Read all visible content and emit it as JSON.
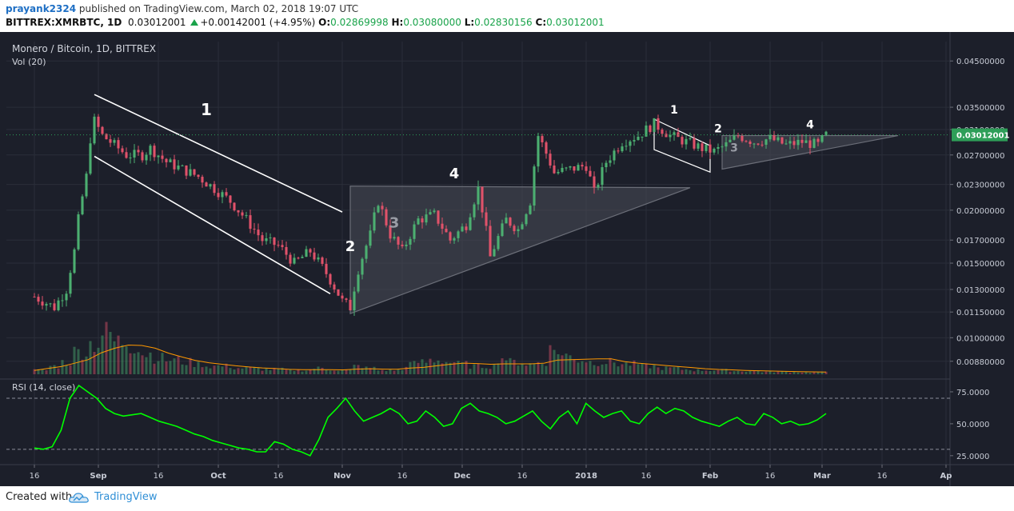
{
  "header": {
    "user": "prayank2324",
    "published": "published on TradingView.com, March 02, 2018 19:07 UTC",
    "symbol": "BITTREX:XMRBTC, 1D",
    "last": "0.03012001",
    "change": "+0.00142001 (+4.95%)",
    "o_label": "O:",
    "o_value": "0.02869998",
    "h_label": "H:",
    "h_value": "0.03080000",
    "l_label": "L:",
    "l_value": "0.02830156",
    "c_label": "C:",
    "c_value": "0.03012001"
  },
  "footer": {
    "created_with": "Created with",
    "brand": "TradingView"
  },
  "colors": {
    "background": "#1c1f2a",
    "up": "#4caf71",
    "down": "#e0526a",
    "rsi": "#00ff00",
    "last_price_bg": "#2e9e58",
    "pattern_fill": "#4a4d57"
  },
  "chart_data": {
    "type": "candlestick",
    "title": "Monero / Bitcoin, 1D, BITTREX",
    "volume_label": "Vol (20)",
    "last_price_label": "0.03012001",
    "x_ticks": [
      "16",
      "Sep",
      "16",
      "Oct",
      "16",
      "Nov",
      "16",
      "Dec",
      "16",
      "2018",
      "16",
      "Feb",
      "16",
      "Mar",
      "16",
      "Ap"
    ],
    "y_ticks": [
      "0.04500000",
      "0.03500000",
      "0.03100000",
      "0.02700000",
      "0.02300000",
      "0.02000000",
      "0.01700000",
      "0.01500000",
      "0.01300000",
      "0.01150000",
      "0.01000000",
      "0.00880000"
    ],
    "y_range": [
      0.0082,
      0.05
    ],
    "y_scale": "log",
    "annotations": [
      "1",
      "2",
      "3",
      "4",
      "1",
      "2",
      "3",
      "4"
    ],
    "close_path": [
      [
        "Aug 16",
        0.0125
      ],
      [
        "Aug 21",
        0.0118
      ],
      [
        "Aug 24",
        0.013
      ],
      [
        "Aug 26",
        0.016
      ],
      [
        "Aug 27",
        0.019
      ],
      [
        "Aug 28",
        0.0215
      ],
      [
        "Aug 29",
        0.024
      ],
      [
        "Aug 30",
        0.0295
      ],
      [
        "Aug 31",
        0.0325
      ],
      [
        "Sep 2",
        0.03
      ],
      [
        "Sep 5",
        0.0285
      ],
      [
        "Sep 8",
        0.027
      ],
      [
        "Sep 12",
        0.027
      ],
      [
        "Sep 14",
        0.028
      ],
      [
        "Sep 18",
        0.026
      ],
      [
        "Sep 22",
        0.025
      ],
      [
        "Sep 26",
        0.024
      ],
      [
        "Sep 30",
        0.0225
      ],
      [
        "Oct 4",
        0.021
      ],
      [
        "Oct 8",
        0.019
      ],
      [
        "Oct 12",
        0.017
      ],
      [
        "Oct 16",
        0.0165
      ],
      [
        "Oct 20",
        0.015
      ],
      [
        "Oct 24",
        0.016
      ],
      [
        "Oct 28",
        0.0142
      ],
      [
        "Nov 1",
        0.0122
      ],
      [
        "Nov 3",
        0.0118
      ],
      [
        "Nov 5",
        0.0145
      ],
      [
        "Nov 8",
        0.0175
      ],
      [
        "Nov 10",
        0.021
      ],
      [
        "Nov 13",
        0.0175
      ],
      [
        "Nov 16",
        0.016
      ],
      [
        "Nov 20",
        0.019
      ],
      [
        "Nov 24",
        0.0195
      ],
      [
        "Nov 28",
        0.017
      ],
      [
        "Dec 2",
        0.0185
      ],
      [
        "Dec 5",
        0.0225
      ],
      [
        "Dec 8",
        0.0155
      ],
      [
        "Dec 12",
        0.019
      ],
      [
        "Dec 15",
        0.018
      ],
      [
        "Dec 18",
        0.021
      ],
      [
        "Dec 20",
        0.03
      ],
      [
        "Dec 24",
        0.0245
      ],
      [
        "Dec 28",
        0.025
      ],
      [
        "Jan 1",
        0.0255
      ],
      [
        "Jan 3",
        0.022
      ],
      [
        "Jan 6",
        0.026
      ],
      [
        "Jan 10",
        0.029
      ],
      [
        "Jan 14",
        0.03
      ],
      [
        "Jan 18",
        0.032
      ],
      [
        "Jan 22",
        0.03
      ],
      [
        "Jan 26",
        0.029
      ],
      [
        "Jan 30",
        0.028
      ],
      [
        "Feb 2",
        0.0275
      ],
      [
        "Feb 5",
        0.0285
      ],
      [
        "Feb 8",
        0.03
      ],
      [
        "Feb 12",
        0.029
      ],
      [
        "Feb 16",
        0.0295
      ],
      [
        "Feb 20",
        0.0285
      ],
      [
        "Feb 24",
        0.029
      ],
      [
        "Feb 28",
        0.0285
      ],
      [
        "Mar 2",
        0.0301
      ]
    ],
    "volume": {
      "values_relative": [
        0.1,
        0.2,
        0.3,
        0.55,
        0.75,
        1.0,
        0.8,
        0.7,
        0.5,
        0.4,
        0.35,
        0.3,
        0.25,
        0.2,
        0.2,
        0.15,
        0.15,
        0.12,
        0.12,
        0.1,
        0.1,
        0.15,
        0.12,
        0.1,
        0.2,
        0.15,
        0.1,
        0.1,
        0.25,
        0.3,
        0.35,
        0.3,
        0.25,
        0.2,
        0.2,
        0.4,
        0.3,
        0.25,
        0.3,
        0.6,
        0.45,
        0.35,
        0.3,
        0.3,
        0.25,
        0.25,
        0.2,
        0.15,
        0.15,
        0.12,
        0.1,
        0.1,
        0.1,
        0.08,
        0.08,
        0.06,
        0.06,
        0.06,
        0.05,
        0.05
      ]
    },
    "rsi": {
      "label": "RSI (14, close)",
      "y_ticks": [
        "75.0000",
        "50.0000",
        "25.0000"
      ],
      "bands": [
        70,
        30
      ],
      "y_range": [
        18,
        85
      ],
      "values": [
        31,
        30,
        32,
        45,
        70,
        80,
        75,
        70,
        62,
        58,
        56,
        57,
        58,
        55,
        52,
        50,
        48,
        45,
        42,
        40,
        37,
        35,
        33,
        31,
        30,
        28,
        28,
        36,
        34,
        30,
        28,
        25,
        38,
        55,
        62,
        70,
        60,
        52,
        55,
        58,
        62,
        58,
        50,
        52,
        60,
        55,
        48,
        50,
        62,
        66,
        60,
        58,
        55,
        50,
        52,
        56,
        60,
        52,
        46,
        55,
        60,
        50,
        66,
        60,
        55,
        58,
        60,
        52,
        50,
        58,
        63,
        58,
        62,
        60,
        55,
        52,
        50,
        48,
        52,
        55,
        50,
        49,
        58,
        55,
        50,
        52,
        49,
        50,
        53,
        58
      ]
    }
  }
}
